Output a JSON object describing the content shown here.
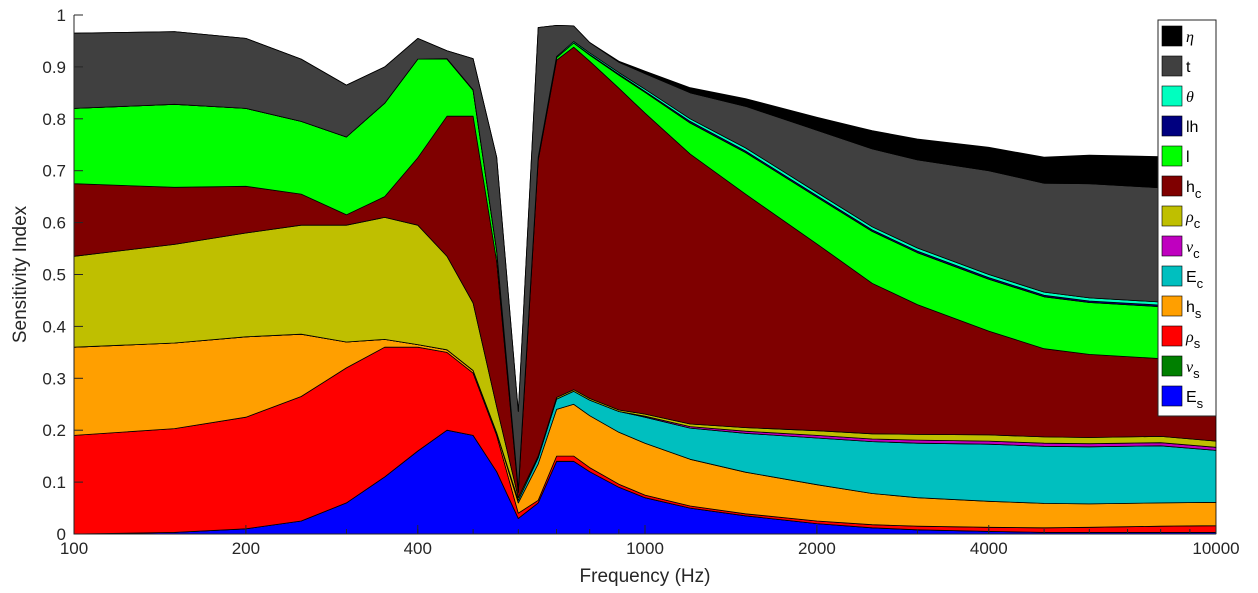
{
  "chart_data": {
    "type": "area",
    "stacked": true,
    "xlabel": "Frequency (Hz)",
    "ylabel": "Sensitivity Index",
    "xscale": "log",
    "xlim": [
      100,
      10000
    ],
    "ylim": [
      0,
      1
    ],
    "x_ticks": [
      100,
      200,
      400,
      1000,
      2000,
      4000,
      10000
    ],
    "x_tick_labels": [
      "100",
      "200",
      "400",
      "1000",
      "2000",
      "4000",
      "10000"
    ],
    "y_ticks": [
      0,
      0.1,
      0.2,
      0.3,
      0.4,
      0.5,
      0.6,
      0.7,
      0.8,
      0.9,
      1
    ],
    "y_tick_labels": [
      "0",
      "0.1",
      "0.2",
      "0.3",
      "0.4",
      "0.5",
      "0.6",
      "0.7",
      "0.8",
      "0.9",
      "1"
    ],
    "grid": false,
    "legend_position": "top-right",
    "x": [
      100,
      150,
      200,
      250,
      300,
      350,
      400,
      450,
      500,
      550,
      600,
      650,
      700,
      750,
      800,
      900,
      1000,
      1200,
      1500,
      2000,
      2500,
      3000,
      4000,
      5000,
      6000,
      8000,
      10000
    ],
    "series": [
      {
        "name": "E_s",
        "label_main": "E",
        "label_sub": "s",
        "color": "#0000ff",
        "values": [
          0.0,
          0.003,
          0.01,
          0.025,
          0.06,
          0.11,
          0.16,
          0.2,
          0.19,
          0.12,
          0.03,
          0.06,
          0.14,
          0.14,
          0.12,
          0.09,
          0.07,
          0.05,
          0.035,
          0.02,
          0.012,
          0.008,
          0.005,
          0.003,
          0.003,
          0.003,
          0.003
        ]
      },
      {
        "name": "nu_s",
        "label_main": "ν",
        "label_sub": "s",
        "color": "#007f00",
        "values": [
          0,
          0,
          0,
          0,
          0,
          0,
          0,
          0,
          0,
          0,
          0,
          0,
          0,
          0,
          0,
          0,
          0,
          0,
          0,
          0,
          0,
          0,
          0,
          0,
          0,
          0,
          0
        ]
      },
      {
        "name": "rho_s",
        "label_main": "ρ",
        "label_sub": "s",
        "color": "#ff0000",
        "values": [
          0.19,
          0.2,
          0.215,
          0.24,
          0.26,
          0.25,
          0.2,
          0.15,
          0.12,
          0.07,
          0.01,
          0.005,
          0.01,
          0.01,
          0.008,
          0.006,
          0.005,
          0.004,
          0.004,
          0.005,
          0.006,
          0.007,
          0.008,
          0.009,
          0.01,
          0.012,
          0.013
        ]
      },
      {
        "name": "h_s",
        "label_main": "h",
        "label_sub": "s",
        "color": "#ff9f00",
        "values": [
          0.17,
          0.165,
          0.155,
          0.12,
          0.05,
          0.015,
          0.005,
          0.005,
          0.005,
          0.005,
          0.02,
          0.07,
          0.09,
          0.1,
          0.1,
          0.1,
          0.1,
          0.09,
          0.08,
          0.07,
          0.06,
          0.055,
          0.05,
          0.047,
          0.045,
          0.045,
          0.045
        ]
      },
      {
        "name": "E_c",
        "label_main": "E",
        "label_sub": "c",
        "color": "#00bfbf",
        "values": [
          0.0,
          0.0,
          0.0,
          0.0,
          0.0,
          0.0,
          0.0,
          0.0,
          0.0,
          0.0,
          0.005,
          0.012,
          0.02,
          0.025,
          0.03,
          0.04,
          0.05,
          0.06,
          0.075,
          0.09,
          0.1,
          0.105,
          0.11,
          0.11,
          0.11,
          0.11,
          0.1
        ]
      },
      {
        "name": "nu_c",
        "label_main": "ν",
        "label_sub": "c",
        "color": "#bf00bf",
        "values": [
          0,
          0,
          0,
          0,
          0,
          0,
          0,
          0,
          0,
          0,
          0,
          0,
          0,
          0,
          0,
          0,
          0.002,
          0.003,
          0.004,
          0.005,
          0.005,
          0.006,
          0.006,
          0.006,
          0.006,
          0.006,
          0.006
        ]
      },
      {
        "name": "rho_c",
        "label_main": "ρ",
        "label_sub": "c",
        "color": "#bfbf00",
        "values": [
          0.175,
          0.19,
          0.2,
          0.21,
          0.225,
          0.235,
          0.23,
          0.18,
          0.13,
          0.05,
          0.005,
          0.003,
          0.003,
          0.003,
          0.003,
          0.003,
          0.004,
          0.005,
          0.007,
          0.009,
          0.01,
          0.011,
          0.012,
          0.012,
          0.012,
          0.012,
          0.012
        ]
      },
      {
        "name": "h_c",
        "label_main": "h",
        "label_sub": "c",
        "color": "#7f0000",
        "values": [
          0.14,
          0.11,
          0.09,
          0.06,
          0.02,
          0.04,
          0.13,
          0.27,
          0.36,
          0.28,
          0.01,
          0.57,
          0.65,
          0.66,
          0.65,
          0.62,
          0.58,
          0.52,
          0.45,
          0.36,
          0.29,
          0.25,
          0.2,
          0.17,
          0.16,
          0.15,
          0.14
        ]
      },
      {
        "name": "l",
        "label_main": "l",
        "label_sub": "",
        "color": "#00ff00",
        "values": [
          0.145,
          0.16,
          0.15,
          0.14,
          0.15,
          0.18,
          0.19,
          0.11,
          0.05,
          0.02,
          0.005,
          0.004,
          0.005,
          0.008,
          0.012,
          0.025,
          0.04,
          0.06,
          0.08,
          0.09,
          0.1,
          0.1,
          0.1,
          0.1,
          0.1,
          0.1,
          0.1
        ]
      },
      {
        "name": "lh",
        "label_main": "lh",
        "label_sub": "",
        "color": "#00007f",
        "values": [
          0,
          0,
          0,
          0,
          0,
          0,
          0,
          0,
          0,
          0,
          0,
          0,
          0,
          0,
          0.001,
          0.002,
          0.002,
          0.003,
          0.003,
          0.003,
          0.003,
          0.003,
          0.003,
          0.003,
          0.003,
          0.003,
          0.003
        ]
      },
      {
        "name": "theta",
        "label_main": "θ",
        "label_sub": "",
        "color": "#00ffbf",
        "values": [
          0.0,
          0.0,
          0.0,
          0.0,
          0.0,
          0.0,
          0.0,
          0.001,
          0.001,
          0.001,
          0.001,
          0.002,
          0.002,
          0.003,
          0.003,
          0.003,
          0.004,
          0.005,
          0.006,
          0.006,
          0.006,
          0.006,
          0.006,
          0.006,
          0.006,
          0.006,
          0.006
        ]
      },
      {
        "name": "t",
        "label_main": "t",
        "label_sub": "",
        "color": "#404040",
        "values": [
          0.145,
          0.14,
          0.135,
          0.12,
          0.1,
          0.07,
          0.04,
          0.015,
          0.06,
          0.18,
          0.15,
          0.25,
          0.06,
          0.03,
          0.02,
          0.02,
          0.03,
          0.05,
          0.08,
          0.12,
          0.15,
          0.17,
          0.2,
          0.21,
          0.22,
          0.22,
          0.2
        ]
      },
      {
        "name": "eta",
        "label_main": "η",
        "label_sub": "",
        "color": "#000000",
        "values": [
          0.0,
          0.0,
          0.0,
          0.0,
          0.0,
          0.0,
          0.0,
          0.0,
          0.0,
          0.0,
          0.0,
          0.0,
          0.0,
          0.0,
          0.0,
          0.002,
          0.005,
          0.01,
          0.015,
          0.025,
          0.035,
          0.04,
          0.045,
          0.05,
          0.055,
          0.06,
          0.05
        ]
      }
    ]
  }
}
